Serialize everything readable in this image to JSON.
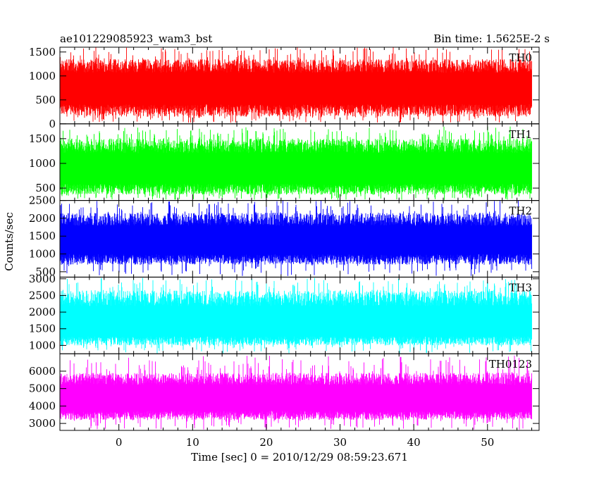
{
  "chart_data": {
    "type": "line",
    "title": "ae101229085923_wam3_bst",
    "subtitle": "Bin time: 1.5625E-2 s",
    "xlabel": "Time [sec] 0 = 2010/12/29 08:59:23.671",
    "ylabel": "Counts/sec",
    "xlim": [
      -8,
      57
    ],
    "data_x_range": [
      -8,
      56
    ],
    "x_ticks": [
      0,
      10,
      20,
      30,
      40,
      50
    ],
    "grid": false,
    "legend": "none",
    "panels": [
      {
        "name": "TH0",
        "color": "#ff0000",
        "ylim": [
          0,
          1600
        ],
        "y_ticks": [
          0,
          500,
          1000,
          1500
        ],
        "mean": 720,
        "low": 150,
        "high": 1350,
        "spike_low": 20,
        "spike_high": 1600
      },
      {
        "name": "TH1",
        "color": "#00ff00",
        "ylim": [
          250,
          1800
        ],
        "y_ticks": [
          500,
          1000,
          1500
        ],
        "mean": 850,
        "low": 370,
        "high": 1500,
        "spike_low": 260,
        "spike_high": 1750
      },
      {
        "name": "TH2",
        "color": "#0000ff",
        "ylim": [
          350,
          2500
        ],
        "y_ticks": [
          500,
          1000,
          1500,
          2000,
          2500
        ],
        "mean": 1350,
        "low": 700,
        "high": 2150,
        "spike_low": 380,
        "spike_high": 2500
      },
      {
        "name": "TH3",
        "color": "#00ffff",
        "ylim": [
          750,
          3050
        ],
        "y_ticks": [
          1000,
          1500,
          2000,
          2500,
          3000
        ],
        "mean": 1600,
        "low": 1000,
        "high": 2650,
        "spike_low": 760,
        "spike_high": 3050
      },
      {
        "name": "TH0123",
        "color": "#ff00ff",
        "ylim": [
          2600,
          7000
        ],
        "y_ticks": [
          3000,
          4000,
          5000,
          6000
        ],
        "mean": 4350,
        "low": 3200,
        "high": 5900,
        "spike_low": 2650,
        "spike_high": 6900
      }
    ]
  }
}
